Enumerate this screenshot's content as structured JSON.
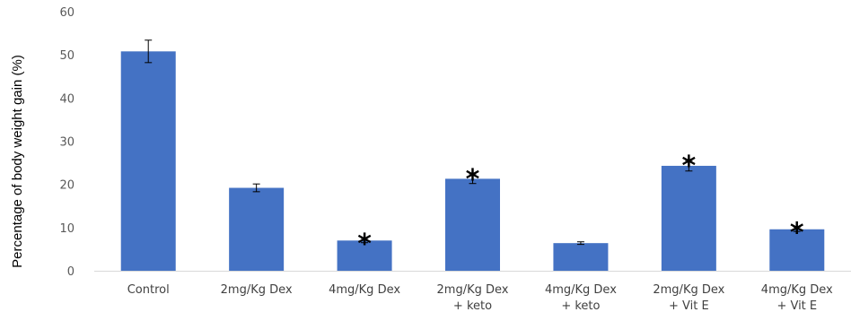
{
  "chart_data": {
    "type": "bar",
    "title": "",
    "xlabel": "",
    "ylabel": "Percentage of body weight gain (%)",
    "ylim": [
      0,
      60
    ],
    "yticks": [
      0,
      10,
      20,
      30,
      40,
      50,
      60
    ],
    "grid": false,
    "bar_color": "#4472C4",
    "categories": [
      [
        "Control"
      ],
      [
        "2mg/Kg Dex"
      ],
      [
        "4mg/Kg Dex"
      ],
      [
        "2mg/Kg Dex",
        "+ keto"
      ],
      [
        "4mg/Kg Dex",
        "+ keto"
      ],
      [
        "2mg/Kg Dex",
        "+ Vit E"
      ],
      [
        "4mg/Kg Dex",
        "+ Vit E"
      ]
    ],
    "values": [
      50.8,
      19.2,
      7.0,
      21.3,
      6.4,
      24.3,
      9.6
    ],
    "errors": [
      2.6,
      0.9,
      0.5,
      1.1,
      0.3,
      1.2,
      0.5
    ],
    "significance": [
      "",
      "",
      "*",
      "*",
      "",
      "*",
      "*"
    ]
  }
}
